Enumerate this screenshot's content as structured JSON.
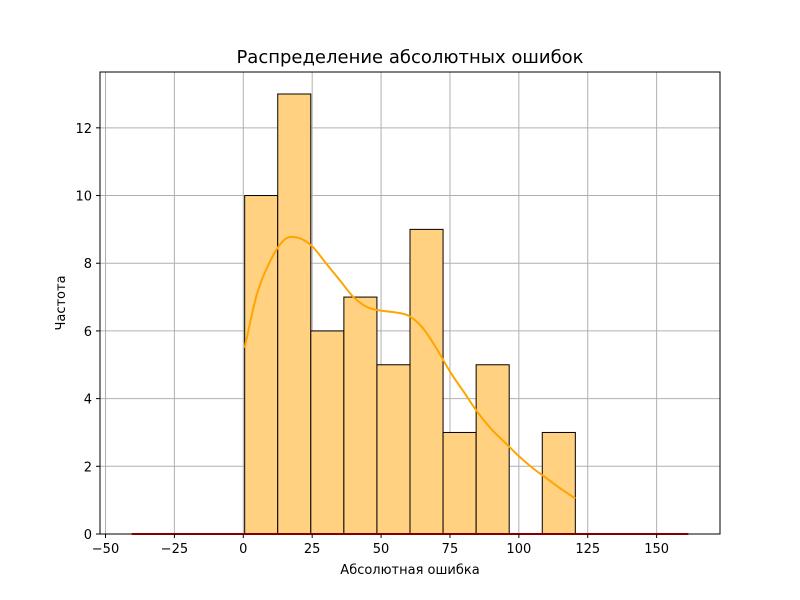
{
  "chart_data": {
    "type": "bar",
    "title": "Распределение абсолютных ошибок",
    "xlabel": "Абсолютная ошибка",
    "ylabel": "Частота",
    "xlim": [
      -52,
      173
    ],
    "ylim": [
      0,
      13.65
    ],
    "x_ticks": [
      -50,
      -25,
      0,
      25,
      50,
      75,
      100,
      125,
      150
    ],
    "y_ticks": [
      0,
      2,
      4,
      6,
      8,
      10,
      12
    ],
    "grid": true,
    "bins": [
      {
        "start": 0.5,
        "end": 12.5,
        "count": 10
      },
      {
        "start": 12.5,
        "end": 24.5,
        "count": 13
      },
      {
        "start": 24.5,
        "end": 36.5,
        "count": 6
      },
      {
        "start": 36.5,
        "end": 48.5,
        "count": 7
      },
      {
        "start": 48.5,
        "end": 60.5,
        "count": 5
      },
      {
        "start": 60.5,
        "end": 72.5,
        "count": 9
      },
      {
        "start": 72.5,
        "end": 84.5,
        "count": 3
      },
      {
        "start": 84.5,
        "end": 96.5,
        "count": 5
      },
      {
        "start": 96.5,
        "end": 108.5,
        "count": 0
      },
      {
        "start": 108.5,
        "end": 120.5,
        "count": 3
      }
    ],
    "kde": {
      "x": [
        0.5,
        5,
        10,
        15,
        20,
        25,
        30,
        35,
        40,
        45,
        50,
        55,
        60,
        65,
        70,
        75,
        80,
        85,
        90,
        95,
        100,
        105,
        110,
        115,
        120.5
      ],
      "y": [
        5.5,
        7.1,
        8.1,
        8.7,
        8.75,
        8.5,
        8.0,
        7.5,
        7.0,
        6.7,
        6.6,
        6.55,
        6.45,
        6.1,
        5.5,
        4.8,
        4.2,
        3.6,
        3.1,
        2.7,
        2.3,
        1.95,
        1.65,
        1.35,
        1.05
      ]
    },
    "baseline": {
      "x": [
        -40.5,
        161.5
      ],
      "y": 0
    },
    "colors": {
      "bar_fill": "#ffd180",
      "bar_edge": "#000000",
      "kde_line": "#ffa500",
      "baseline": "#ff0000",
      "grid": "#b0b0b0"
    }
  }
}
